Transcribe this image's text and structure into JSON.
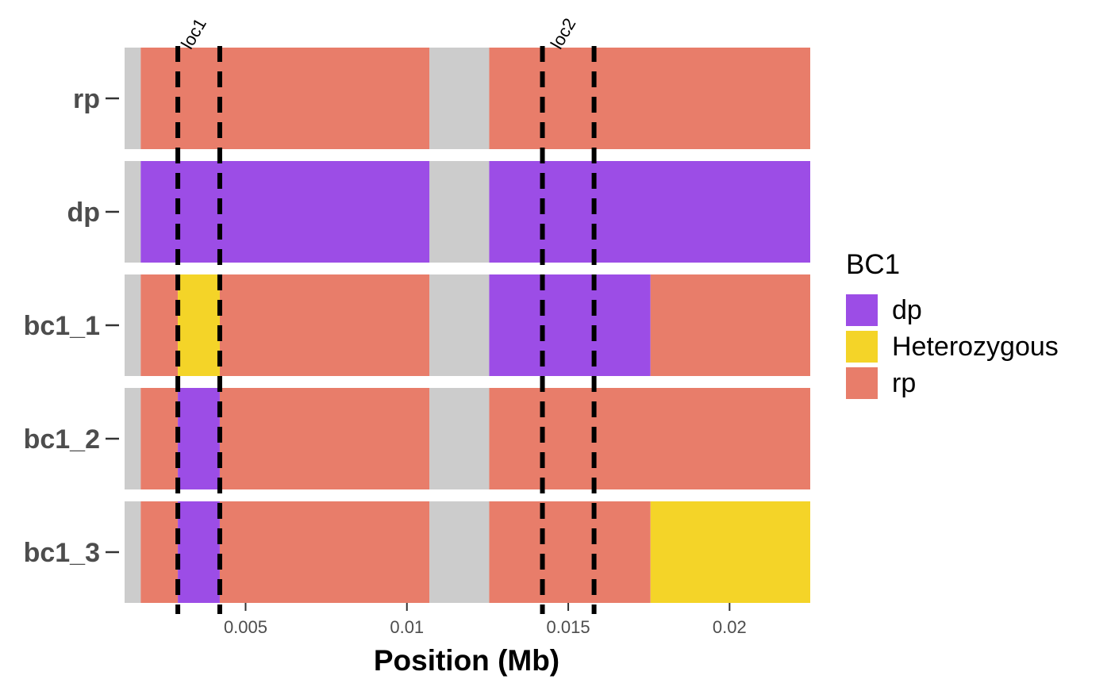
{
  "chart_data": {
    "type": "bar",
    "orientation": "horizontal",
    "xlabel": "Position (Mb)",
    "ylabel": "",
    "xlim": [
      0.00125,
      0.0225
    ],
    "x_ticks": [
      {
        "value": 0.005,
        "label": "0.005"
      },
      {
        "value": 0.01,
        "label": "0.01"
      },
      {
        "value": 0.015,
        "label": "0.015"
      },
      {
        "value": 0.02,
        "label": "0.02"
      }
    ],
    "categories": [
      "rp",
      "dp",
      "bc1_1",
      "bc1_2",
      "bc1_3"
    ],
    "legend": {
      "title": "BC1",
      "position": "right",
      "entries": [
        {
          "key": "dp",
          "label": "dp",
          "color": "#9C4DE6"
        },
        {
          "key": "het",
          "label": "Heterozygous",
          "color": "#F4D428"
        },
        {
          "key": "rp",
          "label": "rp",
          "color": "#E87D6A"
        }
      ]
    },
    "gap_color": "#CCCCCC",
    "markers": [
      {
        "label": "loc1",
        "start": 0.0029,
        "end": 0.0042
      },
      {
        "label": "loc2",
        "start": 0.0142,
        "end": 0.0158
      }
    ],
    "rows": [
      {
        "name": "rp",
        "segments": [
          {
            "start": 0.00125,
            "end": 0.00175,
            "genotype": "gap"
          },
          {
            "start": 0.00175,
            "end": 0.0107,
            "genotype": "rp"
          },
          {
            "start": 0.0107,
            "end": 0.01255,
            "genotype": "gap"
          },
          {
            "start": 0.01255,
            "end": 0.0225,
            "genotype": "rp"
          }
        ]
      },
      {
        "name": "dp",
        "segments": [
          {
            "start": 0.00125,
            "end": 0.00175,
            "genotype": "gap"
          },
          {
            "start": 0.00175,
            "end": 0.0107,
            "genotype": "dp"
          },
          {
            "start": 0.0107,
            "end": 0.01255,
            "genotype": "gap"
          },
          {
            "start": 0.01255,
            "end": 0.0225,
            "genotype": "dp"
          }
        ]
      },
      {
        "name": "bc1_1",
        "segments": [
          {
            "start": 0.00125,
            "end": 0.00175,
            "genotype": "gap"
          },
          {
            "start": 0.00175,
            "end": 0.0029,
            "genotype": "rp"
          },
          {
            "start": 0.0029,
            "end": 0.0042,
            "genotype": "het"
          },
          {
            "start": 0.0042,
            "end": 0.0107,
            "genotype": "rp"
          },
          {
            "start": 0.0107,
            "end": 0.01255,
            "genotype": "gap"
          },
          {
            "start": 0.01255,
            "end": 0.01755,
            "genotype": "dp"
          },
          {
            "start": 0.01755,
            "end": 0.0225,
            "genotype": "rp"
          }
        ]
      },
      {
        "name": "bc1_2",
        "segments": [
          {
            "start": 0.00125,
            "end": 0.00175,
            "genotype": "gap"
          },
          {
            "start": 0.00175,
            "end": 0.0029,
            "genotype": "rp"
          },
          {
            "start": 0.0029,
            "end": 0.0042,
            "genotype": "dp"
          },
          {
            "start": 0.0042,
            "end": 0.0107,
            "genotype": "rp"
          },
          {
            "start": 0.0107,
            "end": 0.01255,
            "genotype": "gap"
          },
          {
            "start": 0.01255,
            "end": 0.0225,
            "genotype": "rp"
          }
        ]
      },
      {
        "name": "bc1_3",
        "segments": [
          {
            "start": 0.00125,
            "end": 0.00175,
            "genotype": "gap"
          },
          {
            "start": 0.00175,
            "end": 0.0029,
            "genotype": "rp"
          },
          {
            "start": 0.0029,
            "end": 0.0042,
            "genotype": "dp"
          },
          {
            "start": 0.0042,
            "end": 0.0107,
            "genotype": "rp"
          },
          {
            "start": 0.0107,
            "end": 0.01255,
            "genotype": "gap"
          },
          {
            "start": 0.01255,
            "end": 0.01755,
            "genotype": "rp"
          },
          {
            "start": 0.01755,
            "end": 0.0225,
            "genotype": "het"
          }
        ]
      }
    ]
  }
}
